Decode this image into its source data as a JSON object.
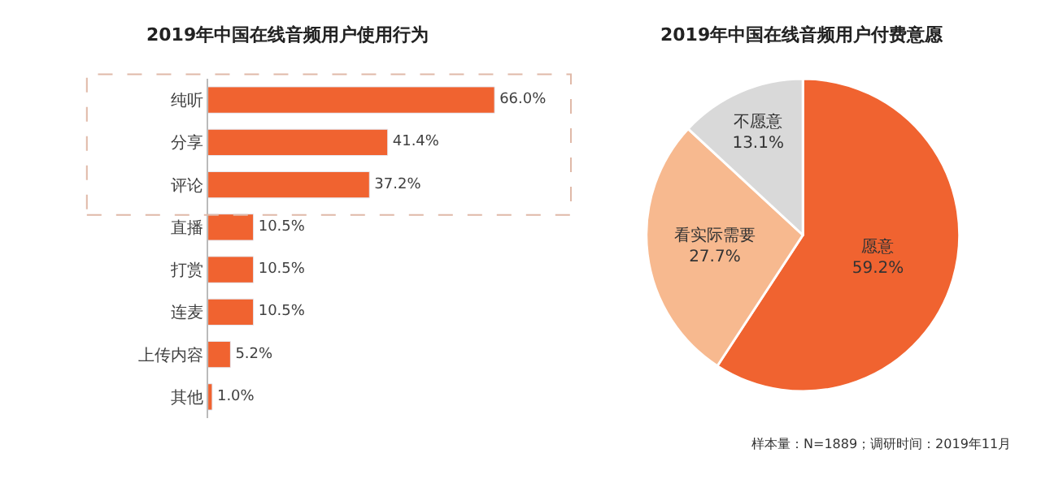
{
  "chart_data": [
    {
      "type": "bar",
      "orientation": "horizontal",
      "title": "2019年中国在线音频用户使用行为",
      "categories": [
        "纯听",
        "分享",
        "评论",
        "直播",
        "打赏",
        "连麦",
        "上传内容",
        "其他"
      ],
      "values": [
        66.0,
        41.4,
        37.2,
        10.5,
        10.5,
        10.5,
        5.2,
        1.0
      ],
      "value_labels": [
        "66.0%",
        "41.4%",
        "37.2%",
        "10.5%",
        "10.5%",
        "10.5%",
        "5.2%",
        "1.0%"
      ],
      "color": "#f06330"
    },
    {
      "type": "pie",
      "title": "2019年中国在线音频用户付费意愿",
      "categories": [
        "愿意",
        "看实际需要",
        "不愿意"
      ],
      "values": [
        59.2,
        27.7,
        13.1
      ],
      "value_labels": [
        "59.2%",
        "27.7%",
        "13.1%"
      ],
      "colors": [
        "#f06330",
        "#f7b98f",
        "#d9d9d9"
      ],
      "annotations": [
        "样本量：N=1889；调研时间：2019年11月"
      ]
    }
  ]
}
